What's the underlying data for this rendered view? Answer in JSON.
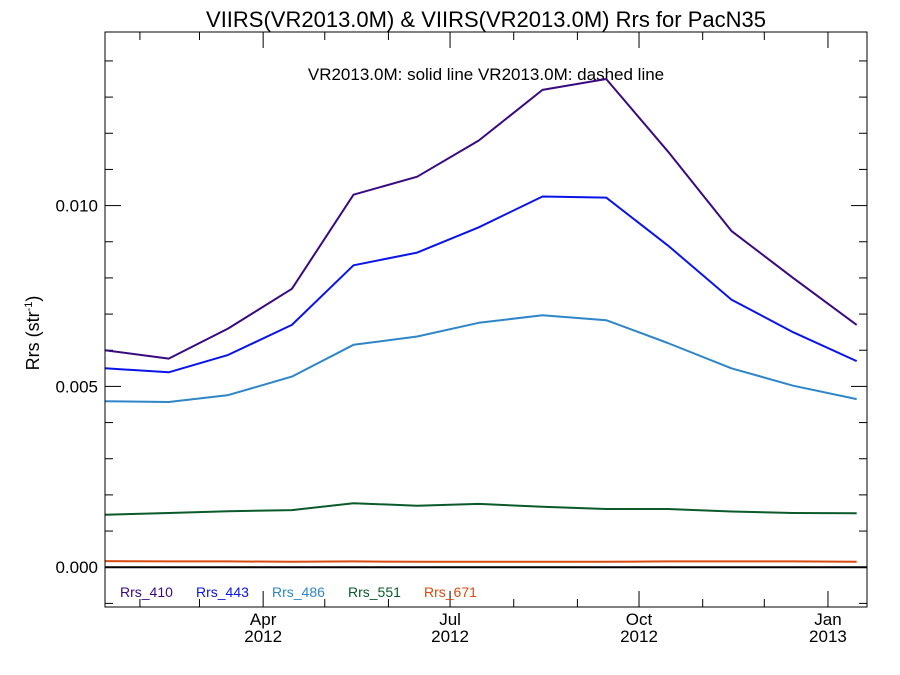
{
  "chart_data": {
    "type": "line",
    "title": "VIIRS(VR2013.0M) & VIIRS(VR2013.0M)  Rrs for PacN35",
    "annotation": "VR2013.0M: solid line   VR2013.0M: dashed line",
    "ylabel": "Rrs (str",
    "ylabel_sup": "-1",
    "ylabel_close": ")",
    "xlabel": "",
    "xlim": [
      "2012-01-15",
      "2013-01-20"
    ],
    "ylim": [
      -0.0011,
      0.0148
    ],
    "y_ticks": [
      {
        "value": 0.0,
        "label": "0.000"
      },
      {
        "value": 0.005,
        "label": "0.005"
      },
      {
        "value": 0.01,
        "label": "0.010"
      }
    ],
    "y_minor_step": 0.001,
    "x_ticks": [
      {
        "date": "2012-04-01",
        "month": "Apr",
        "year": "2012"
      },
      {
        "date": "2012-07-01",
        "month": "Jul",
        "year": "2012"
      },
      {
        "date": "2012-10-01",
        "month": "Oct",
        "year": "2012"
      },
      {
        "date": "2013-01-01",
        "month": "Jan",
        "year": "2013"
      }
    ],
    "x_minor_ticks": [
      "2012-02-01",
      "2012-03-01",
      "2012-05-01",
      "2012-06-01",
      "2012-08-01",
      "2012-09-01",
      "2012-11-01",
      "2012-12-01"
    ],
    "x": [
      "2012-01-15",
      "2012-02-15",
      "2012-03-15",
      "2012-04-15",
      "2012-05-15",
      "2012-06-15",
      "2012-07-15",
      "2012-08-15",
      "2012-09-15",
      "2012-10-15",
      "2012-11-15",
      "2012-12-15",
      "2013-01-15"
    ],
    "zero_line": 0.0,
    "series": [
      {
        "name": "Rrs_410",
        "color": "#3a0a80",
        "values": [
          0.006,
          0.00577,
          0.0066,
          0.0077,
          0.0103,
          0.0108,
          0.0118,
          0.0132,
          0.0135,
          0.0115,
          0.0093,
          0.008,
          0.0067
        ]
      },
      {
        "name": "Rrs_443",
        "color": "#0a14e8",
        "values": [
          0.0055,
          0.00539,
          0.00587,
          0.0067,
          0.00835,
          0.0087,
          0.0094,
          0.01025,
          0.01022,
          0.0089,
          0.0074,
          0.0065,
          0.0057
        ]
      },
      {
        "name": "Rrs_486",
        "color": "#2e86c8",
        "values": [
          0.00459,
          0.00457,
          0.00476,
          0.00527,
          0.00615,
          0.00638,
          0.00676,
          0.00697,
          0.00683,
          0.0062,
          0.0055,
          0.00502,
          0.00465
        ]
      },
      {
        "name": "Rrs_551",
        "color": "#0a5a2a",
        "values": [
          0.00145,
          0.0015,
          0.00155,
          0.00158,
          0.00177,
          0.0017,
          0.00175,
          0.00167,
          0.00161,
          0.00161,
          0.00154,
          0.0015,
          0.00149
        ]
      },
      {
        "name": "Rrs_671",
        "color": "#d84a10",
        "values": [
          0.00017,
          0.00016,
          0.00016,
          0.00015,
          0.00016,
          0.00015,
          0.00015,
          0.00015,
          0.00015,
          0.00016,
          0.00016,
          0.00016,
          0.00015
        ]
      }
    ],
    "legend_position": "bottom-left",
    "grid": false
  }
}
